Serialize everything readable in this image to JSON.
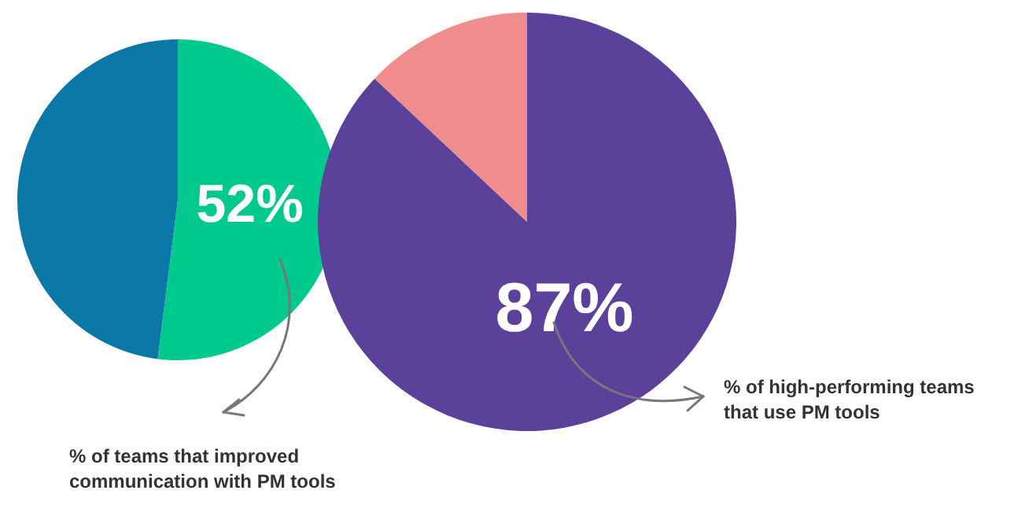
{
  "chart_data": [
    {
      "type": "pie",
      "categories": [
        null,
        null
      ],
      "values": [
        52,
        48
      ],
      "colors": [
        "#00c98e",
        "#0b78a8"
      ],
      "value_labels": [
        "52%",
        null
      ],
      "annotations": [
        "% of teams that improved communication with PM tools"
      ]
    },
    {
      "type": "pie",
      "categories": [
        null,
        null
      ],
      "values": [
        87,
        13
      ],
      "colors": [
        "#5b4199",
        "#f08c8c"
      ],
      "value_labels": [
        "87%",
        null
      ],
      "annotations": [
        "% of high-performing teams that use PM tools"
      ]
    }
  ]
}
